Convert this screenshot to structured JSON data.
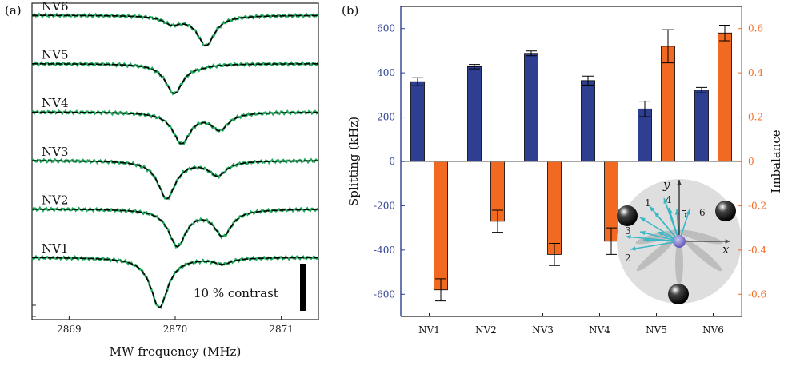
{
  "panel_a": {
    "label": "(a)",
    "xlabel": "MW frequency (MHz)",
    "scale_bar_label": "10 % contrast"
  },
  "panel_b": {
    "label": "(b)",
    "inset": {
      "axis_x": "x",
      "axis_y": "y",
      "vector_labels": [
        "1",
        "2",
        "3",
        "4",
        "5",
        "6"
      ]
    }
  },
  "colors": {
    "splitting_bar": "#2e3f92",
    "imbalance_bar": "#f26a22",
    "left_axis": "#2e3f92",
    "right_axis": "#f26a22",
    "data_trace": "#21a85c",
    "fit_trace": "#000000",
    "inset_arrow": "#3ab7c7"
  },
  "chart_data": [
    {
      "type": "line",
      "panel": "a",
      "xlabel": "MW frequency (MHz)",
      "xlim": [
        2868.65,
        2871.35
      ],
      "xticks": [
        2869,
        2870,
        2871
      ],
      "offset_spacing_contrast": 0.1,
      "series": [
        {
          "name": "NV1",
          "dips": [
            {
              "center": 2869.85,
              "depth": 0.106,
              "width": 0.1
            },
            {
              "center": 2870.45,
              "depth": 0.012,
              "width": 0.1
            }
          ]
        },
        {
          "name": "NV2",
          "dips": [
            {
              "center": 2870.02,
              "depth": 0.077,
              "width": 0.1
            },
            {
              "center": 2870.45,
              "depth": 0.055,
              "width": 0.1
            }
          ]
        },
        {
          "name": "NV3",
          "dips": [
            {
              "center": 2869.92,
              "depth": 0.08,
              "width": 0.1
            },
            {
              "center": 2870.4,
              "depth": 0.03,
              "width": 0.1
            }
          ]
        },
        {
          "name": "NV4",
          "dips": [
            {
              "center": 2870.06,
              "depth": 0.065,
              "width": 0.1
            },
            {
              "center": 2870.42,
              "depth": 0.035,
              "width": 0.1
            }
          ]
        },
        {
          "name": "NV5",
          "dips": [
            {
              "center": 2869.99,
              "depth": 0.063,
              "width": 0.1
            },
            {
              "center": 2870.25,
              "depth": 0.003,
              "width": 0.1
            }
          ]
        },
        {
          "name": "NV6",
          "dips": [
            {
              "center": 2869.97,
              "depth": 0.016,
              "width": 0.1
            },
            {
              "center": 2870.29,
              "depth": 0.063,
              "width": 0.1
            }
          ]
        }
      ]
    },
    {
      "type": "bar",
      "panel": "b",
      "categories": [
        "NV1",
        "NV2",
        "NV3",
        "NV4",
        "NV5",
        "NV6"
      ],
      "ylabel": "Splitting (kHz)",
      "ylabel_right": "Imbalance",
      "ylim": [
        -700,
        700
      ],
      "yticks": [
        -600,
        -400,
        -200,
        0,
        200,
        400,
        600
      ],
      "ylim_right": [
        -0.7,
        0.7
      ],
      "yticks_right": [
        -0.6,
        -0.4,
        -0.2,
        0,
        0.2,
        0.4,
        0.6
      ],
      "series": [
        {
          "name": "Splitting (kHz)",
          "axis": "left",
          "values": [
            360,
            428,
            488,
            365,
            237,
            322
          ],
          "errors": [
            18,
            10,
            11,
            20,
            35,
            12
          ]
        },
        {
          "name": "Imbalance",
          "axis": "right",
          "values": [
            -0.58,
            -0.27,
            -0.42,
            -0.36,
            0.52,
            0.58
          ],
          "errors": [
            0.05,
            0.05,
            0.05,
            0.06,
            0.075,
            0.035
          ]
        }
      ]
    }
  ]
}
